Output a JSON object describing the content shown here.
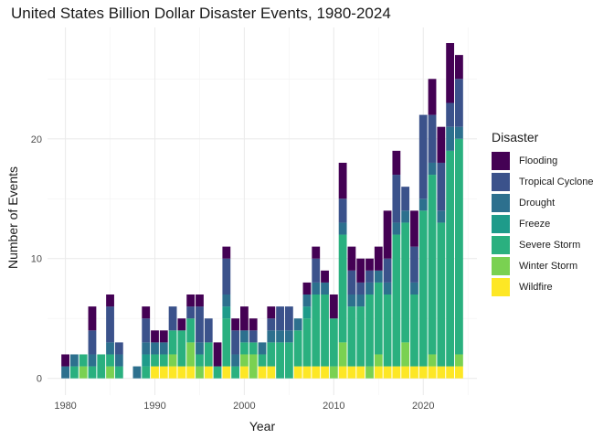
{
  "chart_data": {
    "type": "bar",
    "stacked": true,
    "title": "United States Billion Dollar Disaster Events, 1980-2024",
    "xlabel": "Year",
    "ylabel": "Number of Events",
    "xlim": [
      1978,
      2026
    ],
    "ylim": [
      -1.4,
      29.3
    ],
    "x_ticks": [
      1980,
      1990,
      2000,
      2010,
      2020
    ],
    "y_ticks": [
      0,
      10,
      20
    ],
    "grid": true,
    "legend_position": "right",
    "legend_title": "Disaster",
    "x": [
      1980,
      1981,
      1982,
      1983,
      1984,
      1985,
      1986,
      1987,
      1988,
      1989,
      1990,
      1991,
      1992,
      1993,
      1994,
      1995,
      1996,
      1997,
      1998,
      1999,
      2000,
      2001,
      2002,
      2003,
      2004,
      2005,
      2006,
      2007,
      2008,
      2009,
      2010,
      2011,
      2012,
      2013,
      2014,
      2015,
      2016,
      2017,
      2018,
      2019,
      2020,
      2021,
      2022,
      2023,
      2024
    ],
    "series": [
      {
        "name": "Wildfire",
        "color": "#fde725",
        "values": [
          0,
          0,
          0,
          0,
          0,
          0,
          0,
          0,
          0,
          0,
          1,
          1,
          1,
          1,
          1,
          0,
          1,
          0,
          1,
          0,
          1,
          0,
          1,
          1,
          0,
          0,
          1,
          1,
          1,
          1,
          0,
          1,
          1,
          1,
          0,
          1,
          1,
          1,
          1,
          1,
          1,
          1,
          1,
          1,
          1
        ]
      },
      {
        "name": "Winter Storm",
        "color": "#7ad151",
        "values": [
          0,
          0,
          1,
          0,
          0,
          1,
          0,
          0,
          0,
          0,
          0,
          0,
          1,
          0,
          2,
          1,
          0,
          0,
          0,
          0,
          1,
          2,
          0,
          0,
          0,
          0,
          0,
          0,
          0,
          0,
          1,
          2,
          0,
          0,
          1,
          1,
          0,
          0,
          2,
          0,
          0,
          1,
          0,
          0,
          1
        ]
      },
      {
        "name": "Severe Storm",
        "color": "#2ab07f",
        "values": [
          0,
          1,
          1,
          1,
          2,
          1,
          1,
          0,
          0,
          1,
          1,
          1,
          2,
          3,
          2,
          1,
          2,
          1,
          4,
          1,
          1,
          1,
          1,
          2,
          3,
          3,
          3,
          4,
          6,
          6,
          4,
          9,
          5,
          5,
          6,
          6,
          6,
          11,
          10,
          6,
          13,
          15,
          12,
          18,
          18
        ]
      },
      {
        "name": "Freeze",
        "color": "#1e9b8a",
        "values": [
          0,
          0,
          0,
          0,
          0,
          0,
          0,
          0,
          0,
          1,
          0,
          0,
          0,
          0,
          0,
          0,
          0,
          0,
          1,
          0,
          0,
          0,
          0,
          0,
          0,
          0,
          0,
          1,
          0,
          0,
          0,
          0,
          0,
          0,
          0,
          0,
          0,
          0,
          0,
          0,
          0,
          0,
          0,
          0,
          0
        ]
      },
      {
        "name": "Drought",
        "color": "#2d708e",
        "values": [
          1,
          1,
          0,
          1,
          0,
          1,
          1,
          0,
          1,
          1,
          1,
          1,
          0,
          0,
          0,
          1,
          0,
          0,
          1,
          1,
          1,
          0,
          1,
          1,
          1,
          1,
          1,
          1,
          1,
          1,
          0,
          1,
          1,
          1,
          1,
          1,
          1,
          1,
          1,
          1,
          1,
          1,
          1,
          2,
          1
        ]
      },
      {
        "name": "Tropical Cyclone",
        "color": "#3b528b",
        "values": [
          0,
          0,
          0,
          2,
          0,
          3,
          1,
          0,
          0,
          2,
          0,
          0,
          2,
          0,
          1,
          3,
          2,
          0,
          3,
          2,
          0,
          1,
          0,
          1,
          2,
          2,
          0,
          0,
          2,
          0,
          0,
          2,
          2,
          1,
          1,
          0,
          2,
          4,
          2,
          3,
          7,
          4,
          4,
          2,
          4
        ]
      },
      {
        "name": "Flooding",
        "color": "#440154",
        "values": [
          1,
          0,
          0,
          2,
          0,
          1,
          0,
          0,
          0,
          1,
          1,
          1,
          0,
          1,
          1,
          1,
          0,
          2,
          1,
          1,
          2,
          1,
          0,
          1,
          0,
          0,
          0,
          1,
          1,
          1,
          2,
          3,
          2,
          2,
          1,
          2,
          4,
          2,
          0,
          3,
          0,
          3,
          3,
          5,
          2
        ]
      }
    ]
  }
}
